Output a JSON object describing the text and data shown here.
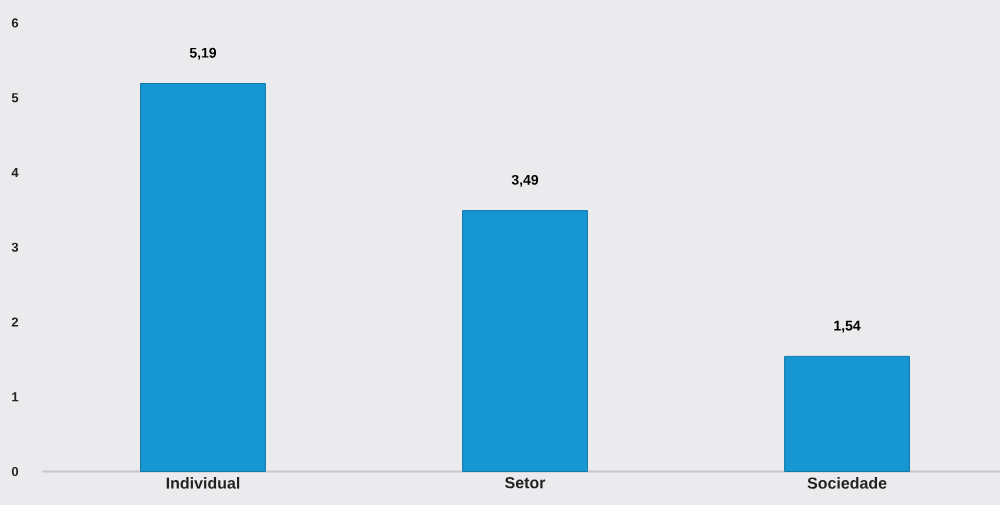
{
  "chart_data": {
    "type": "bar",
    "categories": [
      "Individual",
      "Setor",
      "Sociedade"
    ],
    "values": [
      5.19,
      3.49,
      1.54
    ],
    "value_labels": [
      "5,19",
      "3,49",
      "1,54"
    ],
    "color": "#1696d2",
    "ylim": [
      0,
      6
    ],
    "yticks": [
      0,
      1,
      2,
      3,
      4,
      5,
      6
    ]
  }
}
